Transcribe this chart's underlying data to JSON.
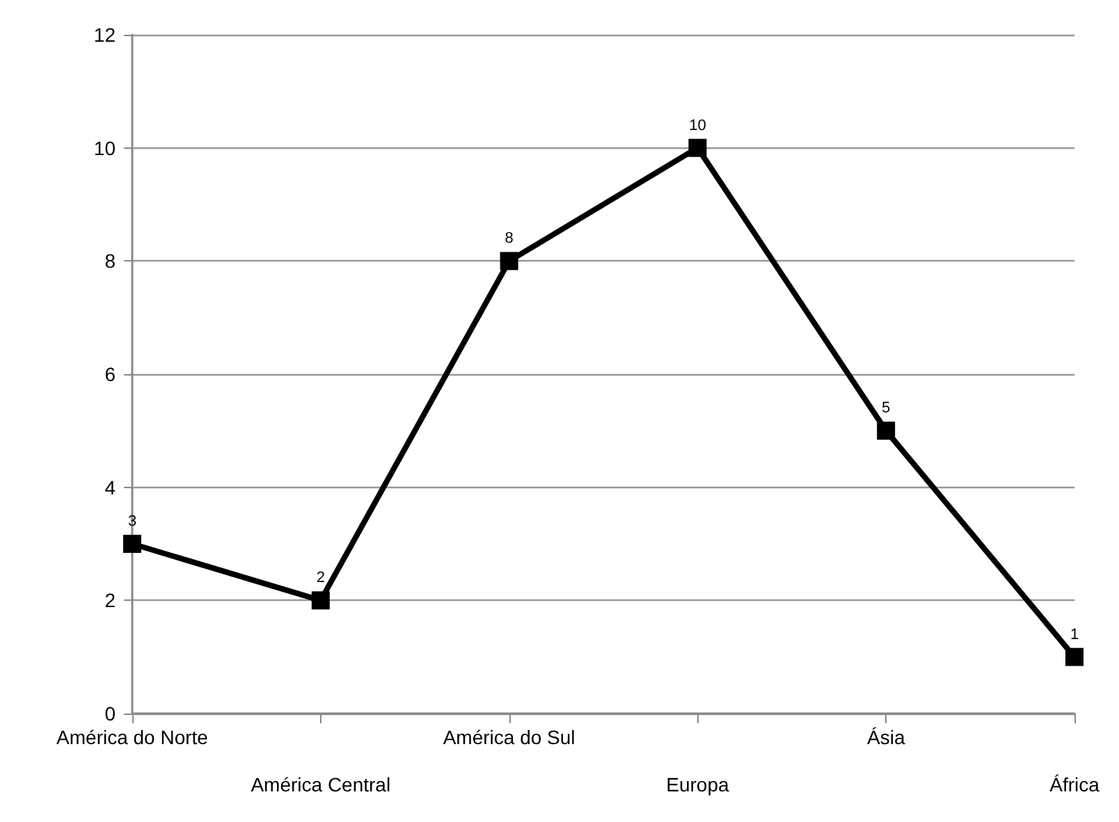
{
  "chart_data": {
    "type": "line",
    "categories": [
      "América do Norte",
      "América Central",
      "América do Sul",
      "Europa",
      "Ásia",
      "África"
    ],
    "series": [
      {
        "color": "#000000",
        "values": [
          3,
          2,
          8,
          10,
          5,
          1
        ]
      }
    ],
    "ylim": [
      0,
      12
    ],
    "yticks": [
      0,
      2,
      4,
      6,
      8,
      10,
      12
    ],
    "grid": "y",
    "marker": "square",
    "line_style": "solid",
    "data_labels": true
  }
}
